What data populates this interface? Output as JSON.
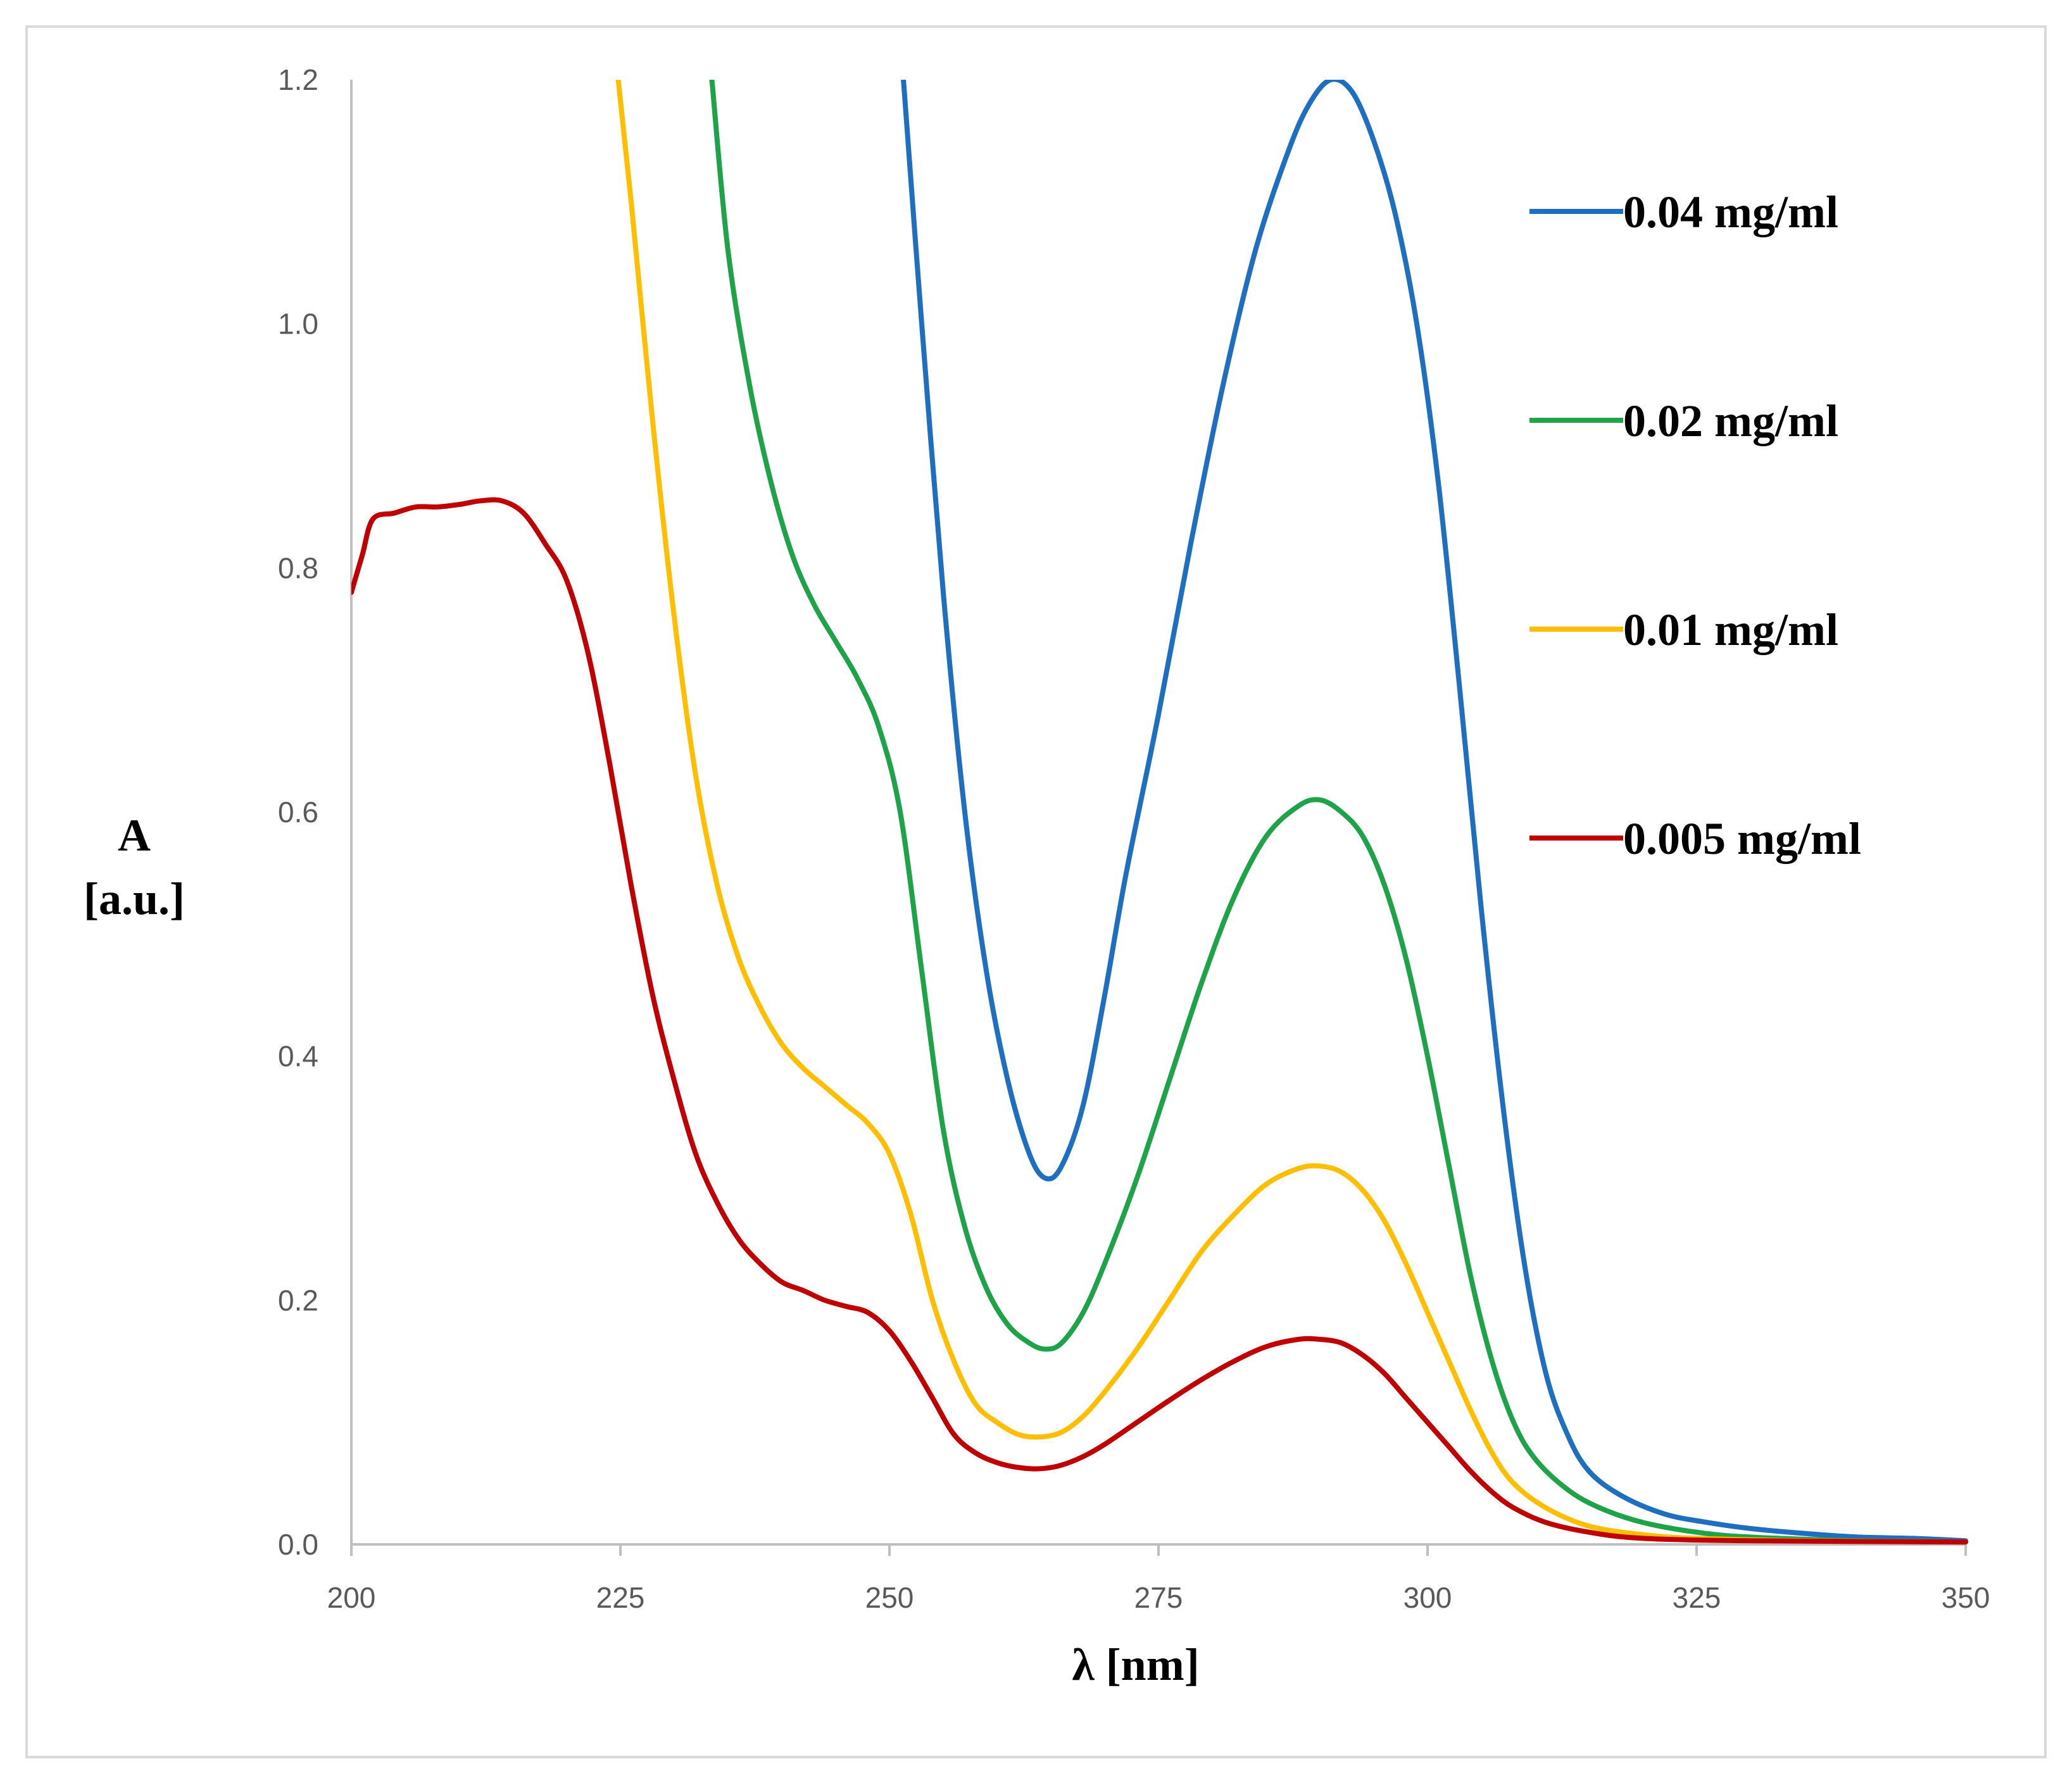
{
  "chart_data": {
    "type": "line",
    "title": "",
    "xlabel": "λ [nm]",
    "ylabel_line1": "A",
    "ylabel_line2": "[a.u.]",
    "xlim": [
      200,
      350
    ],
    "ylim": [
      0,
      1.2
    ],
    "grid": false,
    "legend_position": "top-right",
    "x_ticks": [
      200,
      225,
      250,
      275,
      300,
      325,
      350
    ],
    "x_tick_labels": [
      "200",
      "225",
      "250",
      "275",
      "300",
      "325",
      "350"
    ],
    "y_ticks": [
      0,
      0.2,
      0.4,
      0.6,
      0.8,
      1.0,
      1.2
    ],
    "y_tick_labels": [
      "0.0",
      "0.2",
      "0.4",
      "0.6",
      "0.8",
      "1.0",
      "1.2"
    ],
    "series": [
      {
        "name": "0.04 mg/ml",
        "color": "#1f6fc0",
        "points": [
          [
            251.3,
            1.2
          ],
          [
            253,
            1.0
          ],
          [
            255,
            0.78
          ],
          [
            257,
            0.6
          ],
          [
            259,
            0.47
          ],
          [
            261,
            0.38
          ],
          [
            263,
            0.32
          ],
          [
            264.5,
            0.3
          ],
          [
            266,
            0.31
          ],
          [
            268,
            0.36
          ],
          [
            270,
            0.45
          ],
          [
            272,
            0.55
          ],
          [
            275,
            0.68
          ],
          [
            278,
            0.82
          ],
          [
            281,
            0.95
          ],
          [
            284,
            1.06
          ],
          [
            287,
            1.14
          ],
          [
            289,
            1.18
          ],
          [
            291,
            1.2
          ],
          [
            293,
            1.19
          ],
          [
            295,
            1.15
          ],
          [
            297,
            1.09
          ],
          [
            299,
            1.0
          ],
          [
            301,
            0.87
          ],
          [
            303,
            0.7
          ],
          [
            305,
            0.52
          ],
          [
            307,
            0.36
          ],
          [
            309,
            0.23
          ],
          [
            311,
            0.14
          ],
          [
            313,
            0.09
          ],
          [
            315,
            0.06
          ],
          [
            318,
            0.04
          ],
          [
            322,
            0.025
          ],
          [
            326,
            0.018
          ],
          [
            330,
            0.013
          ],
          [
            335,
            0.009
          ],
          [
            340,
            0.006
          ],
          [
            345,
            0.005
          ],
          [
            350,
            0.003
          ]
        ]
      },
      {
        "name": "0.02 mg/ml",
        "color": "#1fa34a",
        "points": [
          [
            233.5,
            1.2
          ],
          [
            235,
            1.06
          ],
          [
            237,
            0.95
          ],
          [
            239,
            0.87
          ],
          [
            241,
            0.81
          ],
          [
            243,
            0.77
          ],
          [
            245,
            0.74
          ],
          [
            247,
            0.71
          ],
          [
            249,
            0.67
          ],
          [
            251,
            0.6
          ],
          [
            253,
            0.47
          ],
          [
            255,
            0.34
          ],
          [
            257,
            0.26
          ],
          [
            259,
            0.21
          ],
          [
            261,
            0.18
          ],
          [
            263,
            0.165
          ],
          [
            264.5,
            0.16
          ],
          [
            266,
            0.165
          ],
          [
            268,
            0.19
          ],
          [
            270,
            0.23
          ],
          [
            273,
            0.3
          ],
          [
            276,
            0.38
          ],
          [
            279,
            0.46
          ],
          [
            282,
            0.53
          ],
          [
            285,
            0.58
          ],
          [
            288,
            0.605
          ],
          [
            290,
            0.61
          ],
          [
            292,
            0.6
          ],
          [
            294,
            0.58
          ],
          [
            296,
            0.54
          ],
          [
            298,
            0.48
          ],
          [
            300,
            0.4
          ],
          [
            302,
            0.31
          ],
          [
            304,
            0.22
          ],
          [
            306,
            0.15
          ],
          [
            308,
            0.1
          ],
          [
            310,
            0.07
          ],
          [
            313,
            0.045
          ],
          [
            316,
            0.03
          ],
          [
            320,
            0.018
          ],
          [
            325,
            0.01
          ],
          [
            330,
            0.006
          ],
          [
            340,
            0.003
          ],
          [
            350,
            0.002
          ]
        ]
      },
      {
        "name": "0.01 mg/ml",
        "color": "#ffbf00",
        "points": [
          [
            224.8,
            1.2
          ],
          [
            226,
            1.1
          ],
          [
            228,
            0.92
          ],
          [
            230,
            0.76
          ],
          [
            232,
            0.63
          ],
          [
            234,
            0.54
          ],
          [
            236,
            0.48
          ],
          [
            238,
            0.44
          ],
          [
            240,
            0.41
          ],
          [
            242,
            0.39
          ],
          [
            244,
            0.375
          ],
          [
            246,
            0.36
          ],
          [
            248,
            0.345
          ],
          [
            250,
            0.32
          ],
          [
            252,
            0.27
          ],
          [
            254,
            0.2
          ],
          [
            256,
            0.15
          ],
          [
            258,
            0.115
          ],
          [
            260,
            0.1
          ],
          [
            262,
            0.09
          ],
          [
            264,
            0.088
          ],
          [
            266,
            0.092
          ],
          [
            268,
            0.105
          ],
          [
            270,
            0.125
          ],
          [
            273,
            0.16
          ],
          [
            276,
            0.2
          ],
          [
            279,
            0.24
          ],
          [
            282,
            0.27
          ],
          [
            285,
            0.295
          ],
          [
            288,
            0.308
          ],
          [
            290,
            0.31
          ],
          [
            292,
            0.305
          ],
          [
            294,
            0.29
          ],
          [
            296,
            0.265
          ],
          [
            298,
            0.23
          ],
          [
            300,
            0.19
          ],
          [
            302,
            0.15
          ],
          [
            304,
            0.11
          ],
          [
            306,
            0.075
          ],
          [
            308,
            0.05
          ],
          [
            311,
            0.03
          ],
          [
            315,
            0.015
          ],
          [
            320,
            0.008
          ],
          [
            325,
            0.005
          ],
          [
            335,
            0.003
          ],
          [
            350,
            0.002
          ]
        ]
      },
      {
        "name": "0.005 mg/ml",
        "color": "#c00000",
        "points": [
          [
            200,
            0.78
          ],
          [
            201,
            0.81
          ],
          [
            202,
            0.84
          ],
          [
            204,
            0.845
          ],
          [
            206,
            0.85
          ],
          [
            208,
            0.85
          ],
          [
            210,
            0.852
          ],
          [
            212,
            0.855
          ],
          [
            214,
            0.855
          ],
          [
            216,
            0.845
          ],
          [
            218,
            0.82
          ],
          [
            220,
            0.79
          ],
          [
            222,
            0.73
          ],
          [
            224,
            0.64
          ],
          [
            226,
            0.54
          ],
          [
            228,
            0.45
          ],
          [
            230,
            0.38
          ],
          [
            232,
            0.32
          ],
          [
            234,
            0.28
          ],
          [
            236,
            0.25
          ],
          [
            238,
            0.23
          ],
          [
            240,
            0.215
          ],
          [
            242,
            0.208
          ],
          [
            244,
            0.2
          ],
          [
            246,
            0.195
          ],
          [
            248,
            0.19
          ],
          [
            250,
            0.175
          ],
          [
            252,
            0.15
          ],
          [
            254,
            0.12
          ],
          [
            256,
            0.09
          ],
          [
            258,
            0.075
          ],
          [
            260,
            0.067
          ],
          [
            262,
            0.063
          ],
          [
            264,
            0.062
          ],
          [
            266,
            0.065
          ],
          [
            268,
            0.072
          ],
          [
            270,
            0.082
          ],
          [
            273,
            0.1
          ],
          [
            276,
            0.118
          ],
          [
            279,
            0.135
          ],
          [
            282,
            0.15
          ],
          [
            285,
            0.162
          ],
          [
            288,
            0.168
          ],
          [
            290,
            0.168
          ],
          [
            292,
            0.165
          ],
          [
            294,
            0.155
          ],
          [
            296,
            0.14
          ],
          [
            298,
            0.12
          ],
          [
            300,
            0.1
          ],
          [
            302,
            0.08
          ],
          [
            304,
            0.06
          ],
          [
            306,
            0.043
          ],
          [
            308,
            0.03
          ],
          [
            311,
            0.018
          ],
          [
            315,
            0.01
          ],
          [
            320,
            0.005
          ],
          [
            330,
            0.003
          ],
          [
            350,
            0.002
          ]
        ]
      }
    ]
  }
}
